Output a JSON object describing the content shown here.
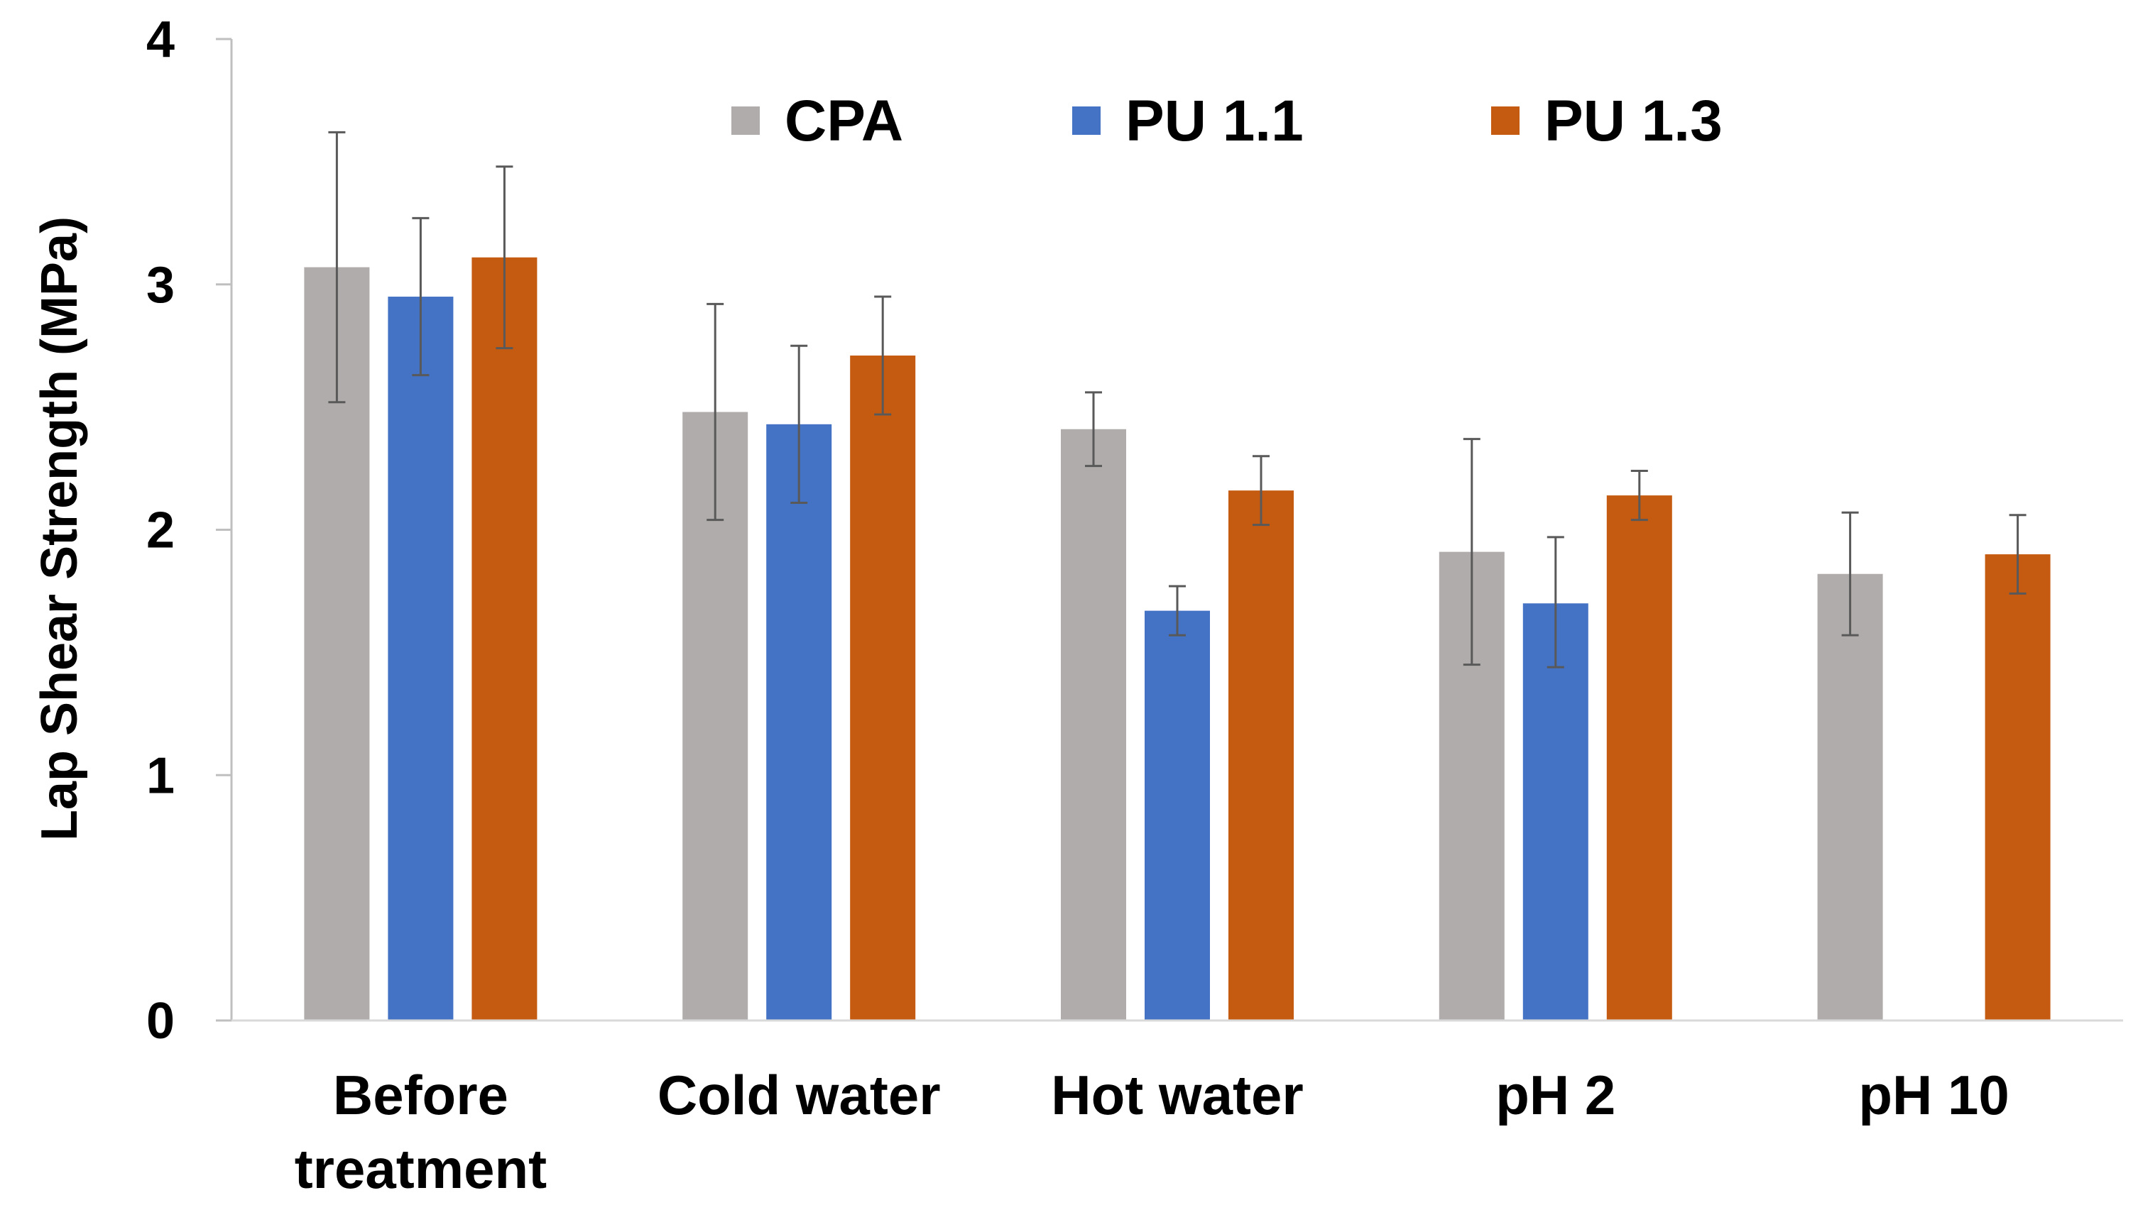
{
  "chart_data": {
    "type": "bar",
    "title": "",
    "xlabel": "",
    "ylabel": "Lap Shear Strength (MPa)",
    "ylim": [
      0,
      4
    ],
    "yticks": [
      "0",
      "1",
      "2",
      "3",
      "4"
    ],
    "grid": false,
    "legend_position": "top",
    "categories": [
      [
        "Before",
        "treatment"
      ],
      [
        "Cold water"
      ],
      [
        "Hot water"
      ],
      [
        "pH 2"
      ],
      [
        "pH 10"
      ]
    ],
    "series": [
      {
        "name": "CPA",
        "color": "#b0acab",
        "values": [
          3.07,
          2.48,
          2.41,
          1.91,
          1.82
        ],
        "err_low": [
          2.52,
          2.04,
          2.26,
          1.45,
          1.57
        ],
        "err_high": [
          3.62,
          2.92,
          2.56,
          2.37,
          2.07
        ]
      },
      {
        "name": "PU 1.1",
        "color": "#4472c4",
        "values": [
          2.95,
          2.43,
          1.67,
          1.7,
          null
        ],
        "err_low": [
          2.63,
          2.11,
          1.57,
          1.44,
          null
        ],
        "err_high": [
          3.27,
          2.75,
          1.77,
          1.97,
          null
        ]
      },
      {
        "name": "PU 1.3",
        "color": "#c55a11",
        "values": [
          3.11,
          2.71,
          2.16,
          2.14,
          1.9
        ],
        "err_low": [
          2.74,
          2.47,
          2.02,
          2.04,
          1.74
        ],
        "err_high": [
          3.48,
          2.95,
          2.3,
          2.24,
          2.06
        ]
      }
    ]
  }
}
